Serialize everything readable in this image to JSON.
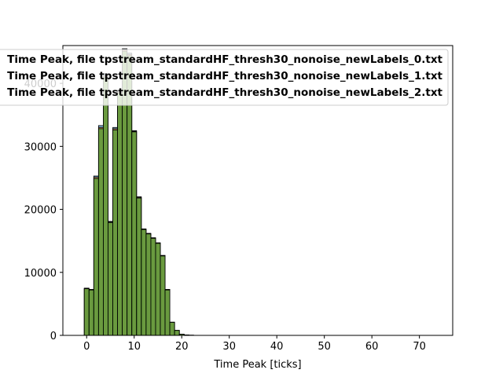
{
  "chart_data": {
    "type": "bar",
    "xlabel": "Time Peak [ticks]",
    "ylabel": "",
    "xlim": [
      -5,
      77
    ],
    "ylim": [
      0,
      46000
    ],
    "xticks": [
      0,
      10,
      20,
      30,
      40,
      50,
      60,
      70
    ],
    "yticks": [
      0,
      10000,
      20000,
      30000,
      40000
    ],
    "ytick_labels": [
      "0",
      "10000",
      "20000",
      "30000",
      "40000"
    ],
    "bin_edges_start": -0.5,
    "bin_width": 1,
    "legend_placement": "top-right",
    "series": [
      {
        "name": "Time Peak, file tpstream_standardHF_thresh30_nonoise_newLabels_0.txt",
        "color": "#1f77b4",
        "values": [
          7500,
          7300,
          25300,
          33300,
          41500,
          18100,
          33000,
          38900,
          45500,
          44800,
          32500,
          22000,
          16900,
          16200,
          15500,
          14700,
          12700,
          7300,
          2100,
          800,
          200,
          80,
          30
        ]
      },
      {
        "name": "Time Peak, file tpstream_standardHF_thresh30_nonoise_newLabels_1.txt",
        "color": "#ff7f0e",
        "values": [
          7450,
          7250,
          25100,
          33000,
          41200,
          18000,
          32800,
          38700,
          45300,
          44600,
          32400,
          21900,
          16850,
          16150,
          15450,
          14650,
          12650,
          7250,
          2080,
          790,
          190,
          75,
          28
        ]
      },
      {
        "name": "Time Peak, file tpstream_standardHF_thresh30_nonoise_newLabels_2.txt",
        "color": "#2ca02c",
        "values": [
          7400,
          7200,
          24900,
          32800,
          41000,
          17900,
          32600,
          38500,
          45100,
          44400,
          32300,
          21800,
          16800,
          16100,
          15400,
          14600,
          12600,
          7200,
          2060,
          780,
          185,
          70,
          25
        ]
      }
    ]
  }
}
